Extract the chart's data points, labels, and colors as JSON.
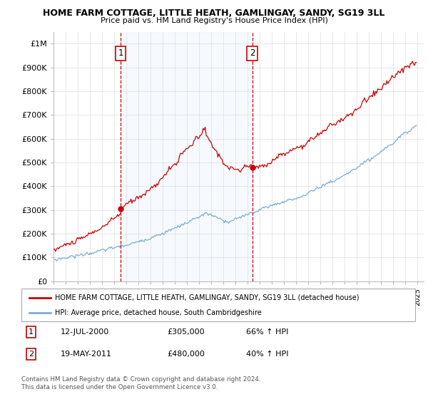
{
  "title": "HOME FARM COTTAGE, LITTLE HEATH, GAMLINGAY, SANDY, SG19 3LL",
  "subtitle": "Price paid vs. HM Land Registry's House Price Index (HPI)",
  "ylim": [
    0,
    1050000
  ],
  "yticks": [
    0,
    100000,
    200000,
    300000,
    400000,
    500000,
    600000,
    700000,
    800000,
    900000,
    1000000
  ],
  "ytick_labels": [
    "£0",
    "£100K",
    "£200K",
    "£300K",
    "£400K",
    "£500K",
    "£600K",
    "£700K",
    "£800K",
    "£900K",
    "£1M"
  ],
  "xlim_start": 1995.0,
  "xlim_end": 2025.5,
  "red_line_color": "#cc0000",
  "blue_line_color": "#7aadd4",
  "shade_color": "#ddeeff",
  "sale1_x": 2000.53,
  "sale1_y": 305000,
  "sale1_label": "1",
  "sale2_x": 2011.38,
  "sale2_y": 480000,
  "sale2_label": "2",
  "legend_red": "HOME FARM COTTAGE, LITTLE HEATH, GAMLINGAY, SANDY, SG19 3LL (detached house)",
  "legend_blue": "HPI: Average price, detached house, South Cambridgeshire",
  "table_row1": [
    "1",
    "12-JUL-2000",
    "£305,000",
    "66% ↑ HPI"
  ],
  "table_row2": [
    "2",
    "19-MAY-2011",
    "£480,000",
    "40% ↑ HPI"
  ],
  "footnote1": "Contains HM Land Registry data © Crown copyright and database right 2024.",
  "footnote2": "This data is licensed under the Open Government Licence v3.0.",
  "background_color": "#ffffff",
  "plot_bg_color": "#ffffff",
  "grid_color": "#dddddd"
}
